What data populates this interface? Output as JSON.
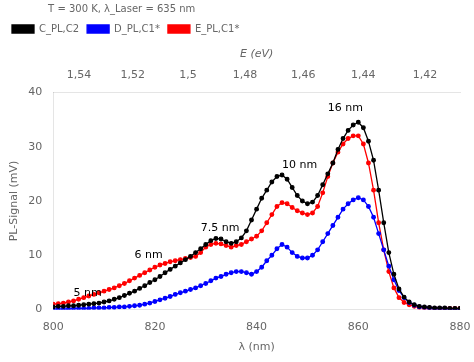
{
  "chart_data": {
    "type": "line",
    "xlabel": "λ (nm)",
    "ylabel": "PL-Signal (mV)",
    "x2label": "E (eV)",
    "xlim": [
      800,
      880
    ],
    "xticks": [
      800,
      820,
      840,
      860,
      880
    ],
    "ylim": [
      0,
      40
    ],
    "yticks": [
      0,
      10,
      20,
      30,
      40
    ],
    "x2lim": [
      800,
      880
    ],
    "x2ticks": [
      {
        "value": 805.0649,
        "label": "1,54"
      },
      {
        "value": 815.6579,
        "label": "1,52"
      },
      {
        "value": 826.5333,
        "label": "1,5"
      },
      {
        "value": 837.7027,
        "label": "1,48"
      },
      {
        "value": 849.1781,
        "label": "1,46"
      },
      {
        "value": 860.9722,
        "label": "1,44"
      },
      {
        "value": 873.0986,
        "label": "1,42"
      }
    ],
    "grid": false,
    "legend": "upper left",
    "legend_title": "T = 300 K, λ_Laser = 635 nm",
    "marker": "circle",
    "line_style": "solid",
    "annotations": [
      {
        "x": 804,
        "y": 2.5,
        "text": "5 nm"
      },
      {
        "x": 816,
        "y": 9.5,
        "text": "6 nm"
      },
      {
        "x": 829,
        "y": 14.5,
        "text": "7.5 nm"
      },
      {
        "x": 845,
        "y": 26,
        "text": "10 nm"
      },
      {
        "x": 854,
        "y": 36.5,
        "text": "16 nm"
      }
    ],
    "x": [
      800,
      801,
      802,
      803,
      804,
      805,
      806,
      807,
      808,
      809,
      810,
      811,
      812,
      813,
      814,
      815,
      816,
      817,
      818,
      819,
      820,
      821,
      822,
      823,
      824,
      825,
      826,
      827,
      828,
      829,
      830,
      831,
      832,
      833,
      834,
      835,
      836,
      837,
      838,
      839,
      840,
      841,
      842,
      843,
      844,
      845,
      846,
      847,
      848,
      849,
      850,
      851,
      852,
      853,
      854,
      855,
      856,
      857,
      858,
      859,
      860,
      861,
      862,
      863,
      864,
      865,
      866,
      867,
      868,
      869,
      870,
      871,
      872,
      873,
      874,
      875,
      876,
      877,
      878,
      879,
      880
    ],
    "series": [
      {
        "name": "C_PL,C2",
        "color": "#000000",
        "values": [
          0.5,
          0.6,
          0.6,
          0.7,
          0.7,
          0.8,
          0.9,
          1.0,
          1.1,
          1.2,
          1.4,
          1.6,
          1.9,
          2.2,
          2.6,
          3.0,
          3.4,
          3.9,
          4.4,
          5.0,
          5.5,
          6.1,
          6.8,
          7.4,
          8.0,
          8.6,
          9.2,
          9.8,
          10.5,
          11.2,
          12.0,
          12.7,
          13.1,
          13.0,
          12.5,
          12.2,
          12.5,
          13.2,
          14.5,
          16.5,
          18.5,
          20.5,
          22.0,
          23.5,
          24.5,
          24.8,
          24.0,
          22.5,
          21.0,
          20.0,
          19.5,
          19.8,
          21.0,
          23.0,
          25.0,
          27.0,
          29.5,
          31.5,
          33.0,
          34.0,
          34.5,
          33.5,
          31.0,
          27.5,
          22.0,
          16.0,
          10.5,
          6.5,
          3.8,
          2.3,
          1.4,
          0.9,
          0.6,
          0.5,
          0.4,
          0.3,
          0.3,
          0.3,
          0.2,
          0.2,
          0.2
        ]
      },
      {
        "name": "D_PL,C1*",
        "color": "#0000ff",
        "values": [
          0.1,
          0.1,
          0.1,
          0.1,
          0.2,
          0.2,
          0.2,
          0.2,
          0.3,
          0.3,
          0.3,
          0.4,
          0.4,
          0.5,
          0.5,
          0.6,
          0.7,
          0.8,
          1.0,
          1.2,
          1.5,
          1.8,
          2.1,
          2.4,
          2.8,
          3.1,
          3.4,
          3.7,
          4.0,
          4.4,
          4.8,
          5.3,
          5.8,
          6.1,
          6.5,
          6.8,
          7.0,
          7.0,
          6.8,
          6.5,
          7.0,
          7.8,
          9.0,
          10.0,
          11.2,
          12.0,
          11.5,
          10.5,
          9.8,
          9.5,
          9.5,
          10.0,
          11.0,
          12.5,
          14.0,
          15.5,
          17.0,
          18.5,
          19.5,
          20.2,
          20.6,
          20.2,
          19.0,
          17.0,
          14.0,
          11.0,
          8.0,
          5.5,
          3.5,
          2.2,
          1.3,
          0.8,
          0.5,
          0.4,
          0.3,
          0.2,
          0.2,
          0.2,
          0.1,
          0.1,
          0.1
        ]
      },
      {
        "name": "E_PL,C1*",
        "color": "#ff0000",
        "values": [
          1.0,
          1.1,
          1.2,
          1.4,
          1.6,
          1.9,
          2.2,
          2.5,
          2.8,
          3.1,
          3.4,
          3.7,
          4.0,
          4.4,
          4.8,
          5.3,
          5.8,
          6.3,
          6.8,
          7.3,
          7.8,
          8.2,
          8.5,
          8.8,
          9.0,
          9.2,
          9.4,
          9.6,
          9.8,
          10.5,
          11.5,
          12.0,
          12.2,
          12.1,
          11.8,
          11.5,
          11.8,
          12.0,
          12.5,
          13.0,
          13.5,
          14.5,
          16.0,
          17.5,
          19.0,
          19.7,
          19.5,
          18.8,
          18.2,
          17.8,
          17.5,
          17.8,
          19.0,
          21.5,
          24.5,
          27.0,
          29.0,
          30.5,
          31.5,
          32.0,
          32.0,
          30.5,
          27.0,
          22.0,
          16.0,
          11.0,
          7.0,
          4.0,
          2.2,
          1.3,
          0.9,
          0.6,
          0.4,
          0.3,
          0.3,
          0.2,
          0.2,
          0.2,
          0.2,
          0.2,
          0.2
        ]
      }
    ]
  }
}
